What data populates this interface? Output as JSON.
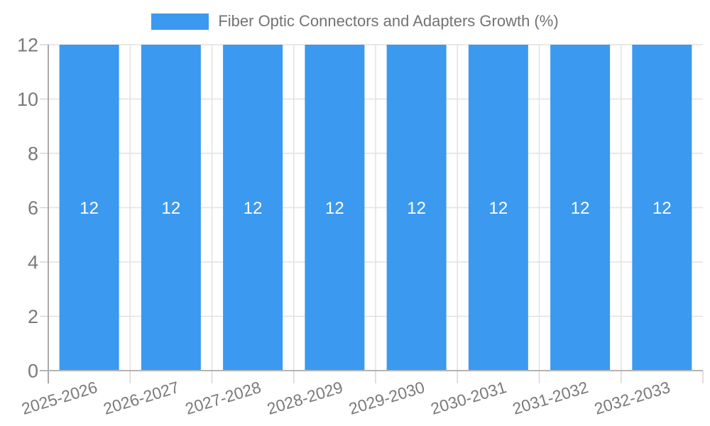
{
  "chart_data": {
    "type": "bar",
    "title": "Fiber Optic Connectors and Adapters Growth (%)",
    "legend_position": "top",
    "categories": [
      "2025-2026",
      "2026-2027",
      "2027-2028",
      "2028-2029",
      "2029-2030",
      "2030-2031",
      "2031-2032",
      "2032-2033"
    ],
    "series": [
      {
        "name": "Fiber Optic Connectors and Adapters Growth (%)",
        "values": [
          12,
          12,
          12,
          12,
          12,
          12,
          12,
          12
        ],
        "data_labels": [
          "12",
          "12",
          "12",
          "12",
          "12",
          "12",
          "12",
          "12"
        ]
      }
    ],
    "xlabel": "",
    "ylabel": "",
    "ylim": [
      0,
      12
    ],
    "yticks": [
      0,
      2,
      4,
      6,
      8,
      10,
      12
    ],
    "grid": true,
    "x_tick_label_rotation_deg": -17,
    "colors": {
      "bar": "#3B99F0",
      "bar_value_label": "#ffffff",
      "tick_text": "#7a7a7a",
      "legend_text": "#737373",
      "gridline": "#e2e2e2",
      "minor_tick": "#d6d6d6",
      "axis_line": "#a9a9a9",
      "zero_line": "#b4b4b4",
      "background": "#ffffff"
    }
  }
}
